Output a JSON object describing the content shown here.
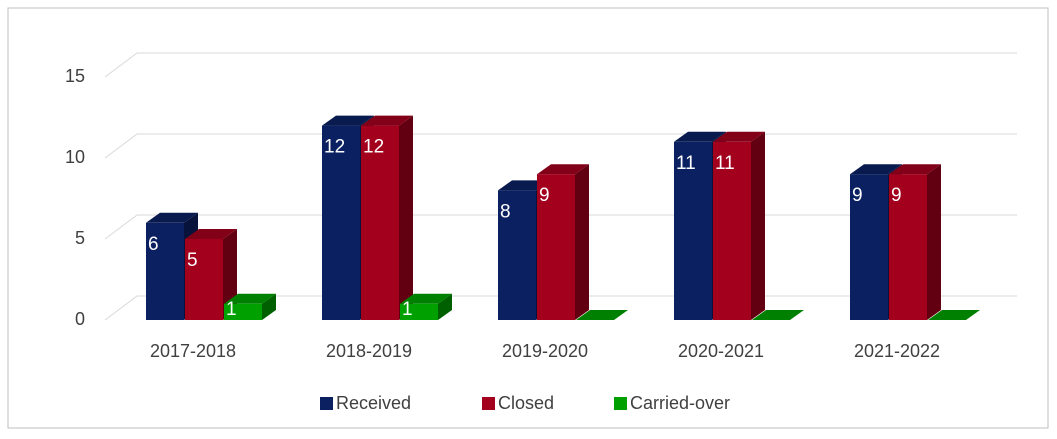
{
  "chart_data": {
    "type": "bar3d",
    "categories": [
      "2017-2018",
      "2018-2019",
      "2019-2020",
      "2020-2021",
      "2021-2022"
    ],
    "series": [
      {
        "name": "Received",
        "color": "#0b2061",
        "values": [
          6,
          12,
          8,
          11,
          9
        ]
      },
      {
        "name": "Closed",
        "color": "#a3001e",
        "values": [
          5,
          12,
          9,
          11,
          9
        ]
      },
      {
        "name": "Carried-over",
        "color": "#00a000",
        "values": [
          1,
          1,
          0,
          0,
          0
        ]
      }
    ],
    "ylim": [
      0,
      15
    ],
    "yticks": [
      0,
      5,
      10,
      15
    ],
    "grid": true,
    "legend": "bottom"
  }
}
